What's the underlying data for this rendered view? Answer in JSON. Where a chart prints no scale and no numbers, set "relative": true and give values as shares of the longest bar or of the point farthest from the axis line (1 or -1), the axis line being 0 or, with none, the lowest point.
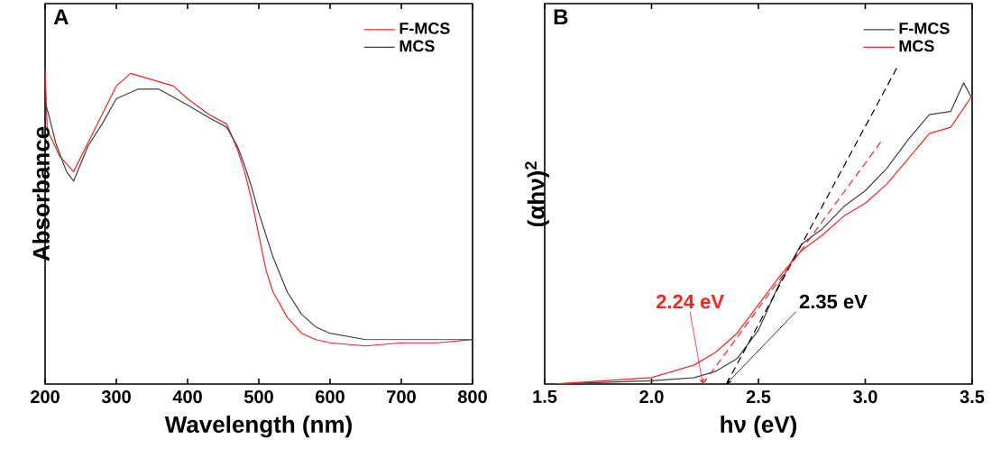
{
  "chart_data": [
    {
      "type": "line",
      "title": "A",
      "xlabel": "Wavelength (nm)",
      "ylabel": "Absorbance",
      "relative": true,
      "xlim": [
        200,
        800
      ],
      "xticks": [
        200,
        300,
        400,
        500,
        600,
        700,
        800
      ],
      "tick_labels": "x",
      "legend": "top right",
      "series": [
        {
          "name": "F-MCS",
          "color": "#ff2020",
          "x": [
            200,
            203,
            210,
            220,
            240,
            260,
            280,
            300,
            320,
            350,
            380,
            400,
            430,
            455,
            470,
            480,
            490,
            500,
            510,
            520,
            540,
            560,
            580,
            600,
            650,
            700,
            750,
            800
          ],
          "values": [
            1.0,
            0.8,
            0.77,
            0.72,
            0.67,
            0.76,
            0.85,
            0.94,
            0.98,
            0.96,
            0.94,
            0.9,
            0.85,
            0.82,
            0.74,
            0.67,
            0.58,
            0.47,
            0.36,
            0.29,
            0.21,
            0.16,
            0.14,
            0.13,
            0.12,
            0.13,
            0.13,
            0.14
          ]
        },
        {
          "name": "MCS",
          "color": "#404040",
          "x": [
            200,
            205,
            215,
            230,
            240,
            260,
            280,
            300,
            330,
            360,
            400,
            430,
            455,
            470,
            480,
            490,
            500,
            520,
            540,
            560,
            580,
            600,
            650,
            700,
            750,
            800
          ],
          "values": [
            0.89,
            0.85,
            0.76,
            0.67,
            0.64,
            0.75,
            0.82,
            0.9,
            0.93,
            0.93,
            0.88,
            0.84,
            0.81,
            0.75,
            0.69,
            0.62,
            0.54,
            0.4,
            0.29,
            0.22,
            0.18,
            0.16,
            0.14,
            0.14,
            0.14,
            0.14
          ]
        }
      ]
    },
    {
      "type": "line",
      "title": "B",
      "xlabel": "hν (eV)",
      "ylabel": "(αhν)$^{2}$",
      "relative": true,
      "xlim": [
        1.5,
        3.5
      ],
      "xticks": [
        1.5,
        {
          "value": 2.0,
          "label": "2.0"
        },
        2.5,
        {
          "value": 3.0,
          "label": "3.0"
        },
        3.5
      ],
      "tick_labels": "x",
      "legend": "top right",
      "annotations": [
        {
          "text": "2.24 eV",
          "x": 2.24,
          "y": 0
        },
        {
          "text": "2.35 eV",
          "x": 2.35,
          "y": 0
        }
      ],
      "series": [
        {
          "name": "F-MCS",
          "color": "#404040",
          "x": [
            1.55,
            2.0,
            2.2,
            2.3,
            2.4,
            2.5,
            2.6,
            2.7,
            2.8,
            2.9,
            3.0,
            3.1,
            3.2,
            3.3,
            3.4,
            3.46,
            3.5
          ],
          "values": [
            0.0,
            0.01,
            0.02,
            0.04,
            0.08,
            0.17,
            0.32,
            0.44,
            0.49,
            0.56,
            0.61,
            0.68,
            0.77,
            0.85,
            0.86,
            0.95,
            0.9
          ]
        },
        {
          "name": "MCS",
          "color": "#ff2020",
          "x": [
            1.55,
            2.0,
            2.2,
            2.3,
            2.4,
            2.5,
            2.6,
            2.7,
            2.8,
            2.9,
            3.0,
            3.1,
            3.2,
            3.3,
            3.4,
            3.5
          ],
          "values": [
            0.0,
            0.02,
            0.06,
            0.1,
            0.16,
            0.25,
            0.34,
            0.42,
            0.47,
            0.53,
            0.57,
            0.63,
            0.71,
            0.79,
            0.81,
            0.91
          ]
        },
        {
          "type": "line",
          "color": "#000000",
          "line_style": "dashed",
          "x": [
            2.35,
            3.15
          ],
          "values": [
            0,
            1.0
          ]
        },
        {
          "type": "line",
          "color": "#ff2020",
          "line_style": "dashed",
          "x": [
            2.24,
            3.08
          ],
          "values": [
            0,
            0.77
          ]
        }
      ]
    }
  ]
}
